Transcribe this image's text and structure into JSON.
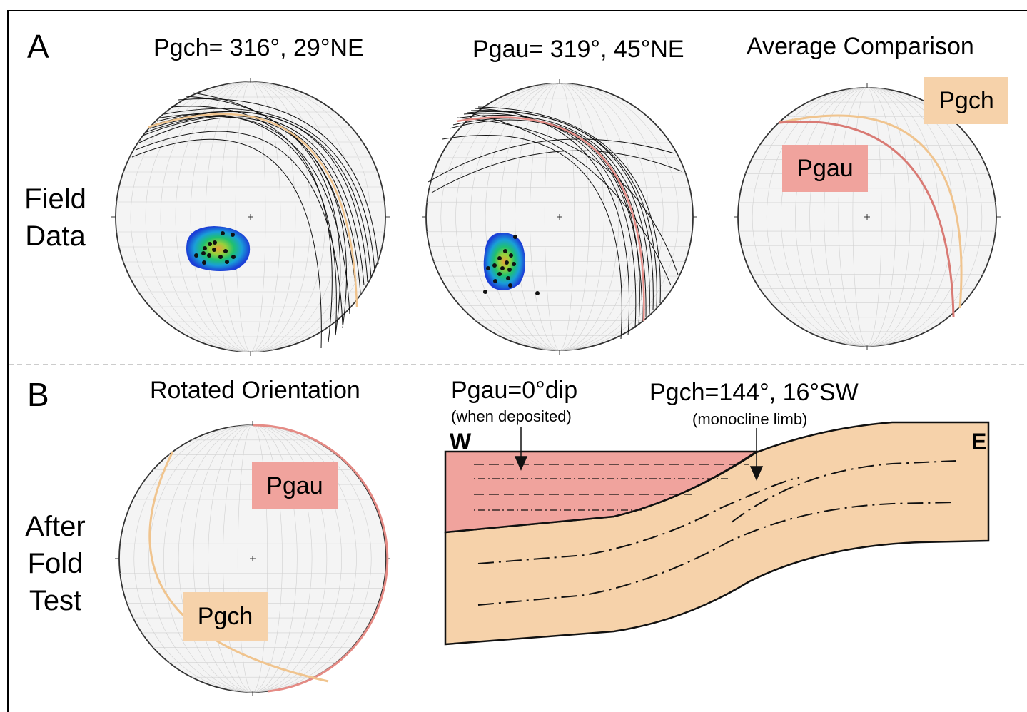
{
  "panel_a": {
    "letter": "A",
    "row_label": "Field\nData",
    "titles": [
      "Pgch= 316°, 29°NE",
      "Pgau= 319°, 45°NE",
      "Average Comparison"
    ],
    "comparison_labels": {
      "pgch": "Pgch",
      "pgau": "Pgau"
    }
  },
  "panel_b": {
    "letter": "B",
    "row_label": "After\nFold\nTest",
    "title": "Rotated Orientation",
    "net_labels": {
      "pgau": "Pgau",
      "pgch": "Pgch"
    },
    "section": {
      "pgau_title": "Pgau=0°dip",
      "pgau_note": "(when deposited)",
      "pgch_title": "Pgch=144°, 16°SW",
      "pgch_note": "(monocline limb)",
      "west": "W",
      "east": "E"
    }
  },
  "colors": {
    "pgau": "#f0a39d",
    "pgau_line": "#d97a74",
    "pgch": "#f6d2aa",
    "pgch_line": "#f0c48e",
    "grid": "#d0d0d0"
  }
}
